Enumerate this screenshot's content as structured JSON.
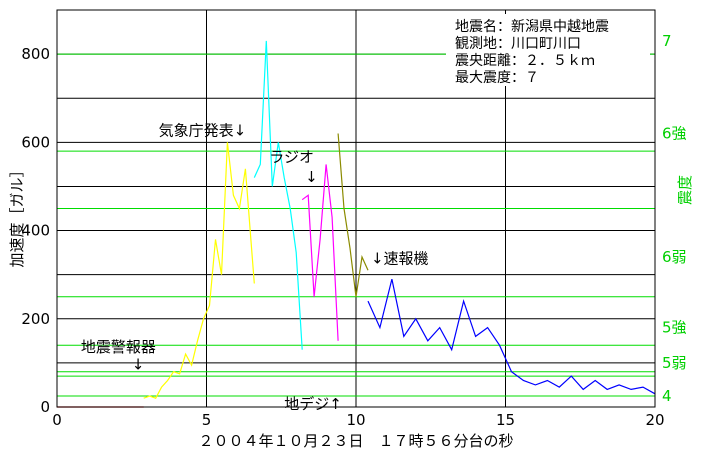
{
  "chart_data": {
    "type": "line",
    "xlabel": "２００４年１０月２３日　１７時５６分台の秒",
    "ylabel": "加速度［ガル］",
    "y2label": "震度",
    "xlim": [
      0,
      20
    ],
    "ylim": [
      0,
      900
    ],
    "x_ticks": [
      "0",
      "5",
      "10",
      "15",
      "20"
    ],
    "y_ticks": [
      "0",
      "200",
      "400",
      "600",
      "800"
    ],
    "grid": true,
    "info_box": [
      "地震名：新潟県中越地震",
      "観測地：川口町川口",
      "震央距離：２．５ｋｍ",
      "最大震度：７"
    ],
    "intensity_scale": [
      {
        "label": "4",
        "gal": 25
      },
      {
        "label": "5弱",
        "gal": 100
      },
      {
        "label": "5強",
        "gal": 180
      },
      {
        "label": "6弱",
        "gal": 340
      },
      {
        "label": "6強",
        "gal": 620
      },
      {
        "label": "7",
        "gal": 830
      }
    ],
    "green_lines": [
      25,
      70,
      80,
      140,
      250,
      450,
      580,
      800
    ],
    "black_lines": [
      100,
      200,
      300,
      400,
      500,
      600,
      700,
      800
    ],
    "annotations": [
      {
        "text": "気象庁発表↓",
        "x": 3.4,
        "y": 615
      },
      {
        "text": "ラジオ",
        "x": 7.1,
        "y": 555
      },
      {
        "text": "↓",
        "x": 8.3,
        "y": 510
      },
      {
        "text": "↓速報機",
        "x": 10.5,
        "y": 325
      },
      {
        "text": "地震警報器",
        "x": 0.8,
        "y": 125
      },
      {
        "text": "↓",
        "x": 2.5,
        "y": 85
      },
      {
        "text": "地デジ↑",
        "x": 7.6,
        "y": -5
      }
    ],
    "series": [
      {
        "color": "#ff0000",
        "x": [
          0,
          2.9
        ],
        "values": [
          0,
          0
        ]
      },
      {
        "color": "#ffff00",
        "x": [
          2.9,
          3.1,
          3.3,
          3.5,
          3.7,
          3.9,
          4.1,
          4.3,
          4.5,
          4.7,
          4.9,
          5.1,
          5.3,
          5.5,
          5.7,
          5.9,
          6.1,
          6.3,
          6.6
        ],
        "values": [
          20,
          25,
          20,
          45,
          60,
          80,
          75,
          120,
          95,
          150,
          200,
          230,
          380,
          300,
          600,
          480,
          450,
          540,
          280
        ]
      },
      {
        "color": "#00ffff",
        "x": [
          6.6,
          6.8,
          7.0,
          7.2,
          7.4,
          7.6,
          7.8,
          8.0,
          8.2
        ],
        "values": [
          520,
          550,
          830,
          500,
          600,
          520,
          450,
          350,
          130
        ]
      },
      {
        "color": "#ff00ff",
        "x": [
          8.2,
          8.4,
          8.6,
          8.8,
          9.0,
          9.2,
          9.4
        ],
        "values": [
          470,
          480,
          250,
          380,
          550,
          430,
          150
        ]
      },
      {
        "color": "#8b8b00",
        "x": [
          9.4,
          9.6,
          9.8,
          10.0,
          10.2,
          10.4
        ],
        "values": [
          620,
          450,
          360,
          250,
          340,
          310
        ]
      },
      {
        "color": "#0000ff",
        "x": [
          10.4,
          10.8,
          11.2,
          11.6,
          12.0,
          12.4,
          12.8,
          13.2,
          13.6,
          14.0,
          14.4,
          14.8,
          15.2,
          15.6,
          16.0,
          16.4,
          16.8,
          17.2,
          17.6,
          18.0,
          18.4,
          18.8,
          19.2,
          19.6,
          20.0
        ],
        "values": [
          240,
          180,
          290,
          160,
          200,
          150,
          180,
          130,
          240,
          160,
          180,
          140,
          80,
          60,
          50,
          60,
          45,
          70,
          40,
          60,
          40,
          50,
          40,
          45,
          30
        ]
      }
    ]
  }
}
